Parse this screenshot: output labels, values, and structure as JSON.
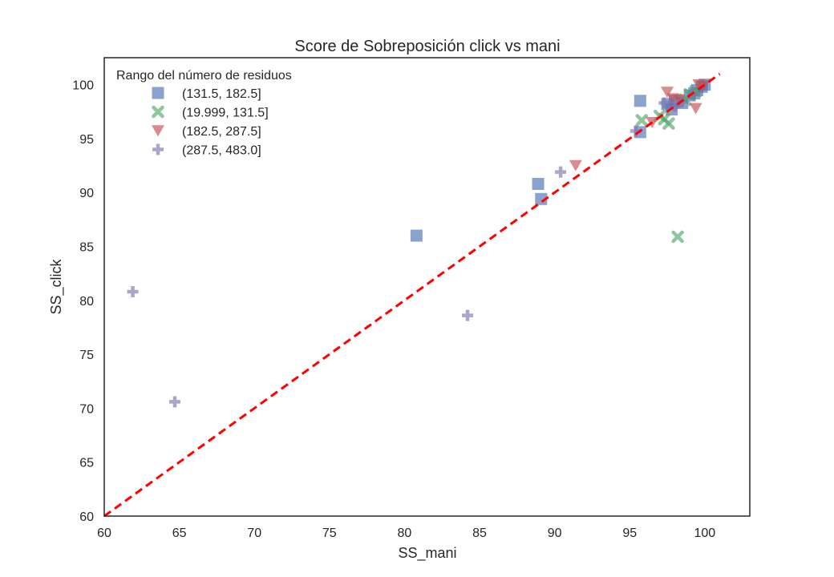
{
  "chart_data": {
    "type": "scatter",
    "title": "Score de Sobreposición click vs mani",
    "xlabel": "SS_mani",
    "ylabel": "SS_click",
    "xlim": [
      60,
      103
    ],
    "ylim": [
      60,
      102.5
    ],
    "xticks": [
      60,
      65,
      70,
      75,
      80,
      85,
      90,
      95,
      100
    ],
    "yticks": [
      60,
      65,
      70,
      75,
      80,
      85,
      90,
      95,
      100
    ],
    "grid": false,
    "legend": {
      "title": "Rango del número de residuos",
      "placement": "top-left"
    },
    "reference_line": {
      "from": [
        60,
        60
      ],
      "to": [
        101,
        101
      ],
      "color": "#ff0000",
      "style": "dashed"
    },
    "series": [
      {
        "name": "(131.5, 182.5]",
        "marker": "square",
        "color": "#4c72b0",
        "points": [
          [
            80.8,
            86.0
          ],
          [
            88.9,
            90.8
          ],
          [
            89.1,
            89.4
          ],
          [
            95.7,
            98.5
          ],
          [
            95.7,
            95.6
          ],
          [
            97.5,
            98.2
          ],
          [
            97.8,
            97.7
          ],
          [
            98.0,
            98.5
          ],
          [
            98.5,
            98.3
          ],
          [
            99.0,
            99.0
          ],
          [
            99.3,
            99.2
          ],
          [
            99.5,
            99.5
          ],
          [
            99.8,
            99.8
          ],
          [
            100.0,
            100.0
          ]
        ]
      },
      {
        "name": "(19.999, 131.5]",
        "marker": "x",
        "color": "#55a868",
        "points": [
          [
            95.8,
            96.7
          ],
          [
            97.0,
            97.1
          ],
          [
            97.3,
            96.8
          ],
          [
            97.6,
            96.4
          ],
          [
            98.2,
            85.9
          ],
          [
            98.7,
            98.6
          ],
          [
            99.0,
            99.1
          ],
          [
            99.4,
            99.4
          ]
        ]
      },
      {
        "name": "(182.5, 287.5]",
        "marker": "triangle-down",
        "color": "#c44e52",
        "points": [
          [
            91.4,
            92.5
          ],
          [
            96.5,
            96.5
          ],
          [
            97.5,
            99.3
          ],
          [
            97.9,
            98.7
          ],
          [
            98.3,
            98.6
          ],
          [
            99.4,
            97.8
          ],
          [
            99.6,
            100.0
          ],
          [
            99.9,
            99.9
          ]
        ]
      },
      {
        "name": "(287.5, 483.0]",
        "marker": "plus",
        "color": "#8172b2",
        "points": [
          [
            61.9,
            80.8
          ],
          [
            64.7,
            70.6
          ],
          [
            84.2,
            78.6
          ],
          [
            90.4,
            91.9
          ],
          [
            95.4,
            95.7
          ],
          [
            97.3,
            98.3
          ],
          [
            98.0,
            98.0
          ],
          [
            98.5,
            98.4
          ],
          [
            99.2,
            99.1
          ]
        ]
      }
    ]
  }
}
